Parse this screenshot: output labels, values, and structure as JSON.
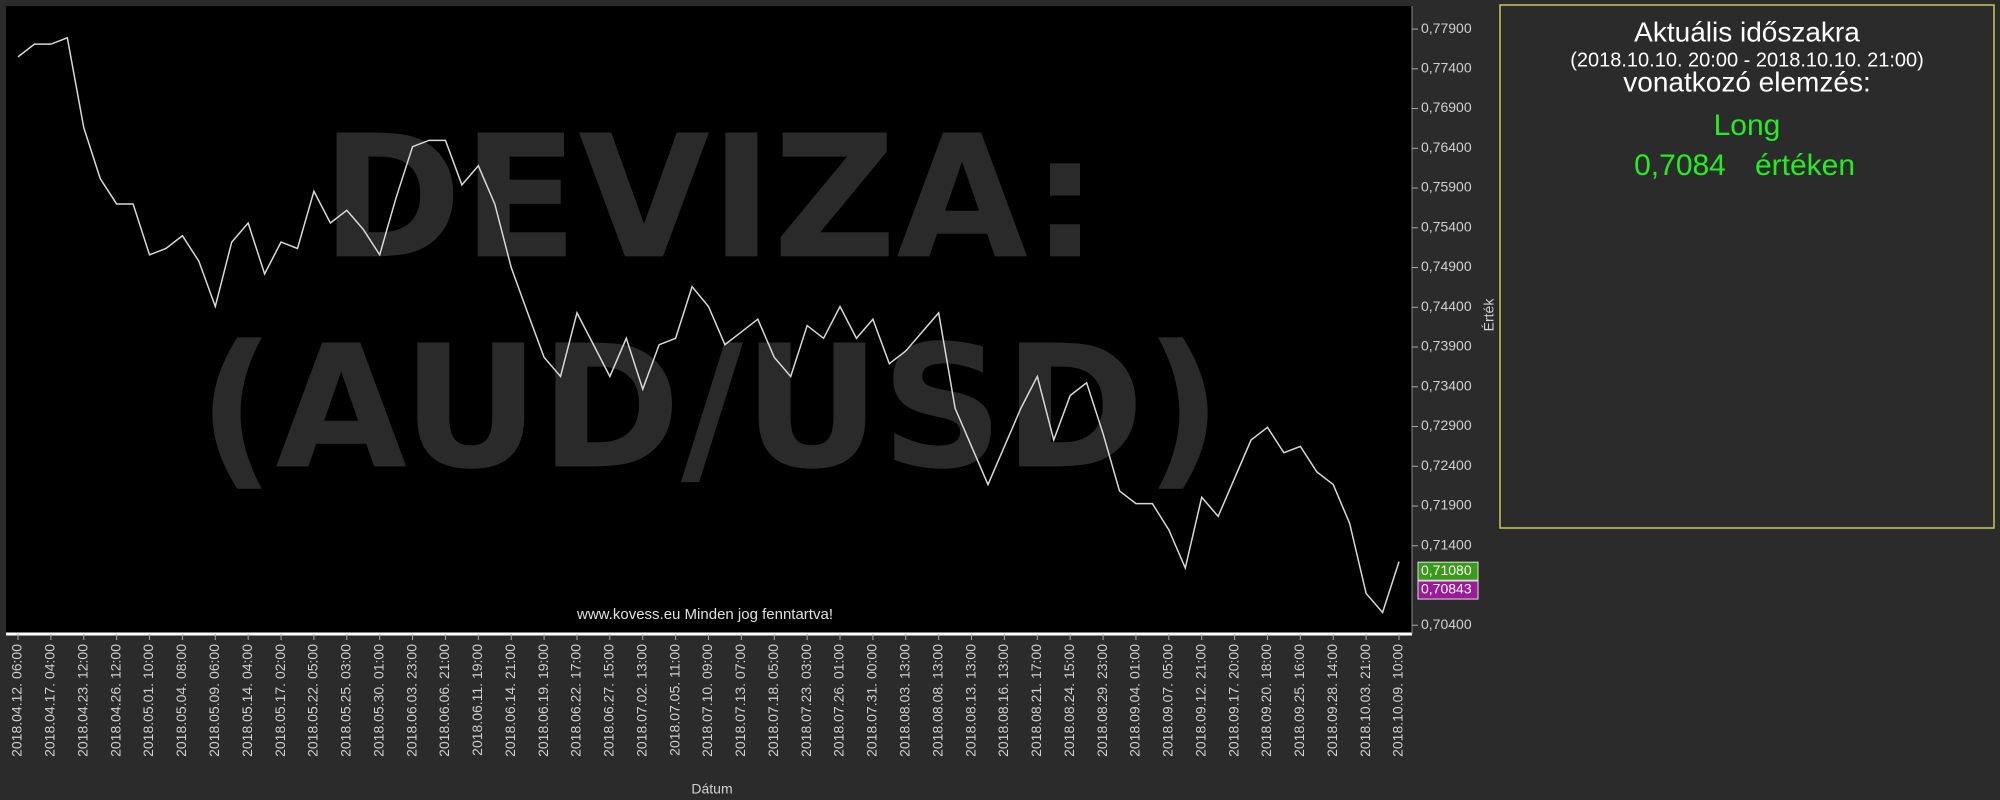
{
  "chart_data": {
    "type": "line",
    "watermark": [
      "DEVIZA:",
      "(AUD/USD)"
    ],
    "footer": "www.kovess.eu Minden jog fenntartva!",
    "x_label": "Dátum",
    "y_label": "Érték",
    "categories": [
      "2018.04.12. 06:00",
      null,
      "2018.04.17. 04:00",
      null,
      "2018.04.23. 12:00",
      null,
      "2018.04.26. 12:00",
      null,
      "2018.05.01. 10:00",
      null,
      "2018.05.04. 08:00",
      null,
      "2018.05.09. 06:00",
      null,
      "2018.05.14. 04:00",
      null,
      "2018.05.17. 02:00",
      null,
      "2018.05.22. 05:00",
      null,
      "2018.05.25. 03:00",
      null,
      "2018.05.30. 01:00",
      null,
      "2018.06.03. 23:00",
      null,
      "2018.06.06. 21:00",
      null,
      "2018.06.11. 19:00",
      null,
      "2018.06.14. 21:00",
      null,
      "2018.06.19. 19:00",
      null,
      "2018.06.22. 17:00",
      null,
      "2018.06.27. 15:00",
      null,
      "2018.07.02. 13:00",
      null,
      "2018.07.05. 11:00",
      null,
      "2018.07.10. 09:00",
      null,
      "2018.07.13. 07:00",
      null,
      "2018.07.18. 05:00",
      null,
      "2018.07.23. 03:00",
      null,
      "2018.07.26. 01:00",
      null,
      "2018.07.31. 00:00",
      null,
      "2018.08.03. 13:00",
      null,
      "2018.08.08. 13:00",
      null,
      "2018.08.13. 13:00",
      null,
      "2018.08.16. 13:00",
      null,
      "2018.08.21. 17:00",
      null,
      "2018.08.24. 15:00",
      null,
      "2018.08.29. 23:00",
      null,
      "2018.09.04. 01:00",
      null,
      "2018.09.07. 05:00",
      null,
      "2018.09.12. 21:00",
      null,
      "2018.09.17. 20:00",
      null,
      "2018.09.20. 18:00",
      null,
      "2018.09.25. 16:00",
      null,
      "2018.09.28. 14:00",
      null,
      "2018.10.03. 21:00",
      null,
      "2018.10.09. 10:00"
    ],
    "series": [
      {
        "name": "AUD/USD",
        "color": "#d8d8d8",
        "values": [
          0.7755,
          0.7771,
          0.7771,
          0.7779,
          0.7666,
          0.7602,
          0.757,
          0.757,
          0.7506,
          0.7514,
          0.753,
          0.7498,
          0.7441,
          0.7522,
          0.7546,
          0.7482,
          0.7522,
          0.7514,
          0.7586,
          0.7546,
          0.7562,
          0.7538,
          0.7506,
          0.7578,
          0.7642,
          0.765,
          0.765,
          0.7594,
          0.7618,
          0.757,
          0.749,
          0.7433,
          0.7377,
          0.7353,
          0.7433,
          0.7393,
          0.7353,
          0.7401,
          0.7337,
          0.7393,
          0.7401,
          0.7466,
          0.7441,
          0.7393,
          0.7409,
          0.7425,
          0.7377,
          0.7353,
          0.7417,
          0.7401,
          0.7441,
          0.7401,
          0.7425,
          0.7369,
          0.7385,
          0.7409,
          0.7433,
          0.7313,
          0.7265,
          0.7217,
          0.7265,
          0.7313,
          0.7353,
          0.7273,
          0.7329,
          0.7345,
          0.7281,
          0.7209,
          0.7193,
          0.7193,
          0.716,
          0.7112,
          0.7201,
          0.7177,
          0.7225,
          0.7273,
          0.7289,
          0.7257,
          0.7265,
          0.7233,
          0.7217,
          0.7168,
          0.708,
          0.7056,
          0.712
        ]
      }
    ],
    "ylim": [
      0.7029,
      0.7819
    ],
    "yticks": [
      {
        "value": 0.779,
        "label": "0,77900"
      },
      {
        "value": 0.774,
        "label": "0,77400"
      },
      {
        "value": 0.769,
        "label": "0,76900"
      },
      {
        "value": 0.764,
        "label": "0,76400"
      },
      {
        "value": 0.759,
        "label": "0,75900"
      },
      {
        "value": 0.754,
        "label": "0,75400"
      },
      {
        "value": 0.749,
        "label": "0,74900"
      },
      {
        "value": 0.744,
        "label": "0,74400"
      },
      {
        "value": 0.739,
        "label": "0,73900"
      },
      {
        "value": 0.734,
        "label": "0,73400"
      },
      {
        "value": 0.729,
        "label": "0,72900"
      },
      {
        "value": 0.724,
        "label": "0,72400"
      },
      {
        "value": 0.719,
        "label": "0,71900"
      },
      {
        "value": 0.714,
        "label": "0,71400"
      },
      {
        "value": 0.704,
        "label": "0,70400"
      }
    ],
    "price_markers": [
      {
        "value": 0.7108,
        "label": "0,71080",
        "color": "#3a9a1a"
      },
      {
        "value": 0.70843,
        "label": "0,70843",
        "color": "#9a1a9a"
      }
    ]
  },
  "panel": {
    "title": "Aktuális időszakra",
    "period": "(2018.10.10. 20:00 - 2018.10.10. 21:00)",
    "subtitle": "vonatkozó elemzés:",
    "signal": "Long",
    "price": "0,7084",
    "price_suffix": "értéken"
  }
}
